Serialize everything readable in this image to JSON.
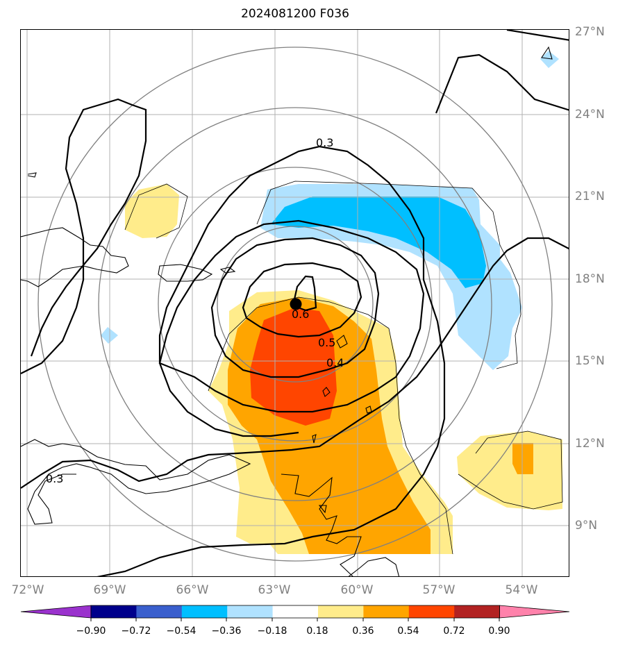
{
  "title": "2024081200 F036",
  "lat_labels": [
    "27°N",
    "24°N",
    "21°N",
    "18°N",
    "15°N",
    "12°N",
    "9°N"
  ],
  "lon_labels": [
    "72°W",
    "69°W",
    "66°W",
    "63°W",
    "60°W",
    "57°W",
    "54°W"
  ],
  "contour_labels": [
    "0.3",
    "0.6",
    "0.5",
    "0.4",
    "0.3"
  ],
  "colorbar": {
    "ticks": [
      "−0.90",
      "−0.72",
      "−0.54",
      "−0.36",
      "−0.18",
      "0.18",
      "0.36",
      "0.54",
      "0.72",
      "0.90"
    ],
    "colors": [
      "#9a32cd",
      "#00008b",
      "#3a5fcd",
      "#00bfff",
      "#b0e2ff",
      "#ffffff",
      "#ffec8b",
      "#ffa500",
      "#ff4500",
      "#b22222",
      "#ff82ab"
    ]
  },
  "colors": {
    "light_blue": "#b0e2ff",
    "deep_sky_blue": "#00bfff",
    "light_yellow": "#ffec8b",
    "orange": "#ffa500",
    "orange_red": "#ff4500",
    "grid": "#b0b0b0",
    "range_rings": "#808080"
  }
}
